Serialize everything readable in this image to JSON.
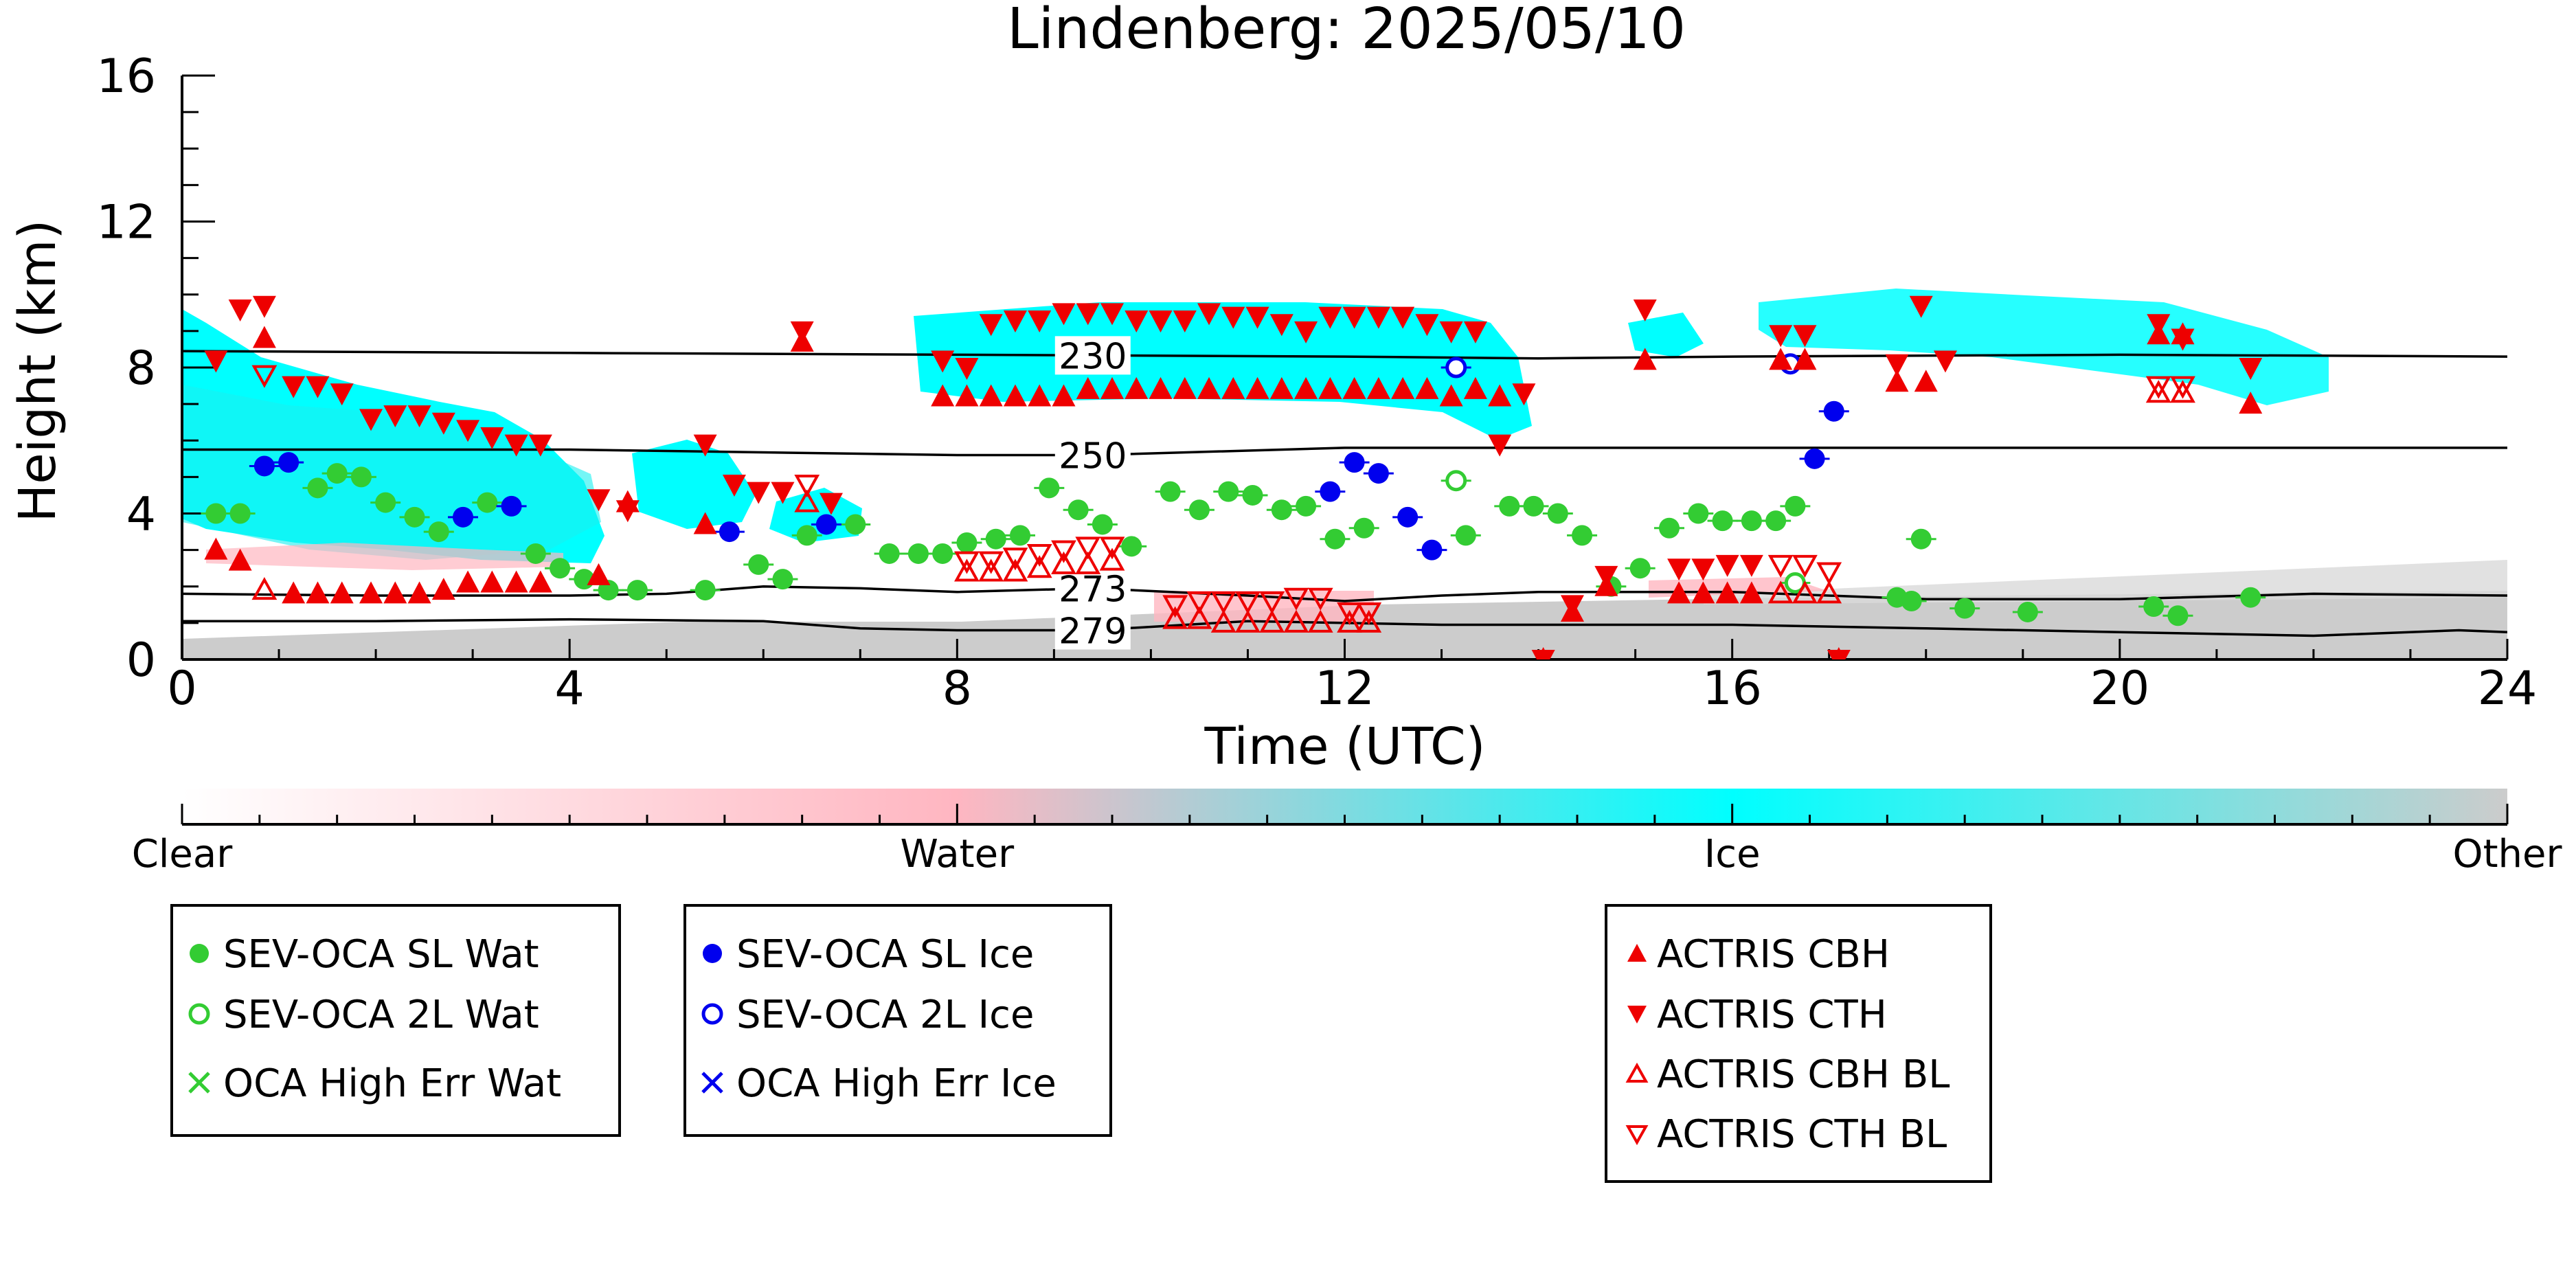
{
  "chart_data": {
    "type": "scatter",
    "title": "Lindenberg: 2025/05/10",
    "xlabel": "Time (UTC)",
    "ylabel": "Height (km)",
    "xlim": [
      0,
      24
    ],
    "ylim": [
      0,
      16
    ],
    "xticks": [
      0,
      4,
      8,
      12,
      16,
      20,
      24
    ],
    "yticks": [
      0,
      4,
      8,
      12,
      16
    ],
    "grid": false,
    "background": "cloud classification curtain (Clear/Water/Ice/Other)",
    "colorbar": {
      "labels": [
        "Clear",
        "Water",
        "Ice",
        "Other"
      ],
      "colors": [
        "#ffffff",
        "#ffb6c1",
        "#00ffff",
        "#cccccc"
      ]
    },
    "isotherms": [
      {
        "label": "230",
        "label_x": 9.4,
        "points": [
          [
            0,
            8.45
          ],
          [
            4,
            8.4
          ],
          [
            8,
            8.35
          ],
          [
            12,
            8.3
          ],
          [
            14,
            8.25
          ],
          [
            16,
            8.3
          ],
          [
            20,
            8.35
          ],
          [
            24,
            8.3
          ]
        ]
      },
      {
        "label": "250",
        "label_x": 9.4,
        "points": [
          [
            0,
            5.75
          ],
          [
            4,
            5.75
          ],
          [
            8,
            5.6
          ],
          [
            9.4,
            5.6
          ],
          [
            12,
            5.8
          ],
          [
            16,
            5.8
          ],
          [
            20,
            5.8
          ],
          [
            24,
            5.8
          ]
        ]
      },
      {
        "label": "273",
        "label_x": 9.4,
        "points": [
          [
            0,
            1.8
          ],
          [
            2,
            1.75
          ],
          [
            4,
            1.75
          ],
          [
            5,
            1.8
          ],
          [
            6,
            2.0
          ],
          [
            7,
            1.95
          ],
          [
            8,
            1.85
          ],
          [
            9.4,
            1.95
          ],
          [
            11,
            1.75
          ],
          [
            12,
            1.6
          ],
          [
            13,
            1.75
          ],
          [
            14,
            1.85
          ],
          [
            16,
            1.85
          ],
          [
            18,
            1.65
          ],
          [
            20,
            1.65
          ],
          [
            22,
            1.8
          ],
          [
            24,
            1.75
          ]
        ]
      },
      {
        "label": "279",
        "label_x": 9.4,
        "points": [
          [
            0,
            1.05
          ],
          [
            2,
            1.05
          ],
          [
            4,
            1.1
          ],
          [
            6,
            1.05
          ],
          [
            7,
            0.85
          ],
          [
            8,
            0.8
          ],
          [
            9.4,
            0.8
          ],
          [
            11,
            1.05
          ],
          [
            13,
            0.95
          ],
          [
            14,
            0.95
          ],
          [
            16,
            0.95
          ],
          [
            18,
            0.85
          ],
          [
            20,
            0.75
          ],
          [
            22,
            0.65
          ],
          [
            23.5,
            0.8
          ],
          [
            24,
            0.75
          ]
        ]
      }
    ],
    "series": [
      {
        "name": "SEV-OCA SL Wat",
        "marker": "filled-circle",
        "color": "#33cc33",
        "points": [
          [
            0.35,
            4.0
          ],
          [
            0.6,
            4.0
          ],
          [
            1.4,
            4.7
          ],
          [
            1.6,
            5.1
          ],
          [
            1.85,
            5.0
          ],
          [
            2.1,
            4.3
          ],
          [
            2.4,
            3.9
          ],
          [
            2.65,
            3.5
          ],
          [
            3.15,
            4.3
          ],
          [
            3.65,
            2.9
          ],
          [
            3.9,
            2.5
          ],
          [
            4.15,
            2.2
          ],
          [
            4.4,
            1.9
          ],
          [
            4.7,
            1.9
          ],
          [
            5.4,
            1.9
          ],
          [
            5.95,
            2.6
          ],
          [
            6.2,
            2.2
          ],
          [
            6.45,
            3.4
          ],
          [
            6.95,
            3.7
          ],
          [
            7.3,
            2.9
          ],
          [
            7.6,
            2.9
          ],
          [
            7.85,
            2.9
          ],
          [
            8.1,
            3.2
          ],
          [
            8.4,
            3.3
          ],
          [
            8.65,
            3.4
          ],
          [
            8.95,
            4.7
          ],
          [
            9.25,
            4.1
          ],
          [
            9.5,
            3.7
          ],
          [
            9.8,
            3.1
          ],
          [
            10.2,
            4.6
          ],
          [
            10.5,
            4.1
          ],
          [
            10.8,
            4.6
          ],
          [
            11.05,
            4.5
          ],
          [
            11.35,
            4.1
          ],
          [
            11.6,
            4.2
          ],
          [
            11.9,
            3.3
          ],
          [
            12.2,
            3.6
          ],
          [
            13.25,
            3.4
          ],
          [
            13.7,
            4.2
          ],
          [
            13.95,
            4.2
          ],
          [
            14.2,
            4.0
          ],
          [
            14.45,
            3.4
          ],
          [
            14.75,
            2.0
          ],
          [
            15.05,
            2.5
          ],
          [
            15.35,
            3.6
          ],
          [
            15.65,
            4.0
          ],
          [
            15.9,
            3.8
          ],
          [
            16.2,
            3.8
          ],
          [
            16.45,
            3.8
          ],
          [
            16.65,
            4.2
          ],
          [
            17.95,
            3.3
          ],
          [
            17.7,
            1.7
          ],
          [
            17.85,
            1.6
          ],
          [
            18.4,
            1.4
          ],
          [
            19.05,
            1.3
          ],
          [
            20.35,
            1.45
          ],
          [
            20.6,
            1.2
          ],
          [
            21.35,
            1.7
          ]
        ]
      },
      {
        "name": "SEV-OCA 2L Wat",
        "marker": "open-circle",
        "color": "#33cc33",
        "points": [
          [
            13.15,
            4.9
          ],
          [
            16.65,
            2.1
          ]
        ]
      },
      {
        "name": "OCA High Err Wat",
        "marker": "x",
        "color": "#33cc33",
        "points": []
      },
      {
        "name": "SEV-OCA SL Ice",
        "marker": "filled-circle",
        "color": "#0000ee",
        "points": [
          [
            0.85,
            5.3
          ],
          [
            1.1,
            5.4
          ],
          [
            2.9,
            3.9
          ],
          [
            3.4,
            4.2
          ],
          [
            5.65,
            3.5
          ],
          [
            6.65,
            3.7
          ],
          [
            11.85,
            4.6
          ],
          [
            12.1,
            5.4
          ],
          [
            12.35,
            5.1
          ],
          [
            12.65,
            3.9
          ],
          [
            12.9,
            3.0
          ],
          [
            16.85,
            5.5
          ],
          [
            17.05,
            6.8
          ]
        ]
      },
      {
        "name": "SEV-OCA 2L Ice",
        "marker": "open-circle",
        "color": "#0000ee",
        "points": [
          [
            13.15,
            8.0
          ],
          [
            16.6,
            8.1
          ]
        ]
      },
      {
        "name": "OCA High Err Ice",
        "marker": "x",
        "color": "#0000ee",
        "points": []
      },
      {
        "name": "ACTRIS CBH",
        "marker": "filled-triangle-up",
        "color": "#ee0000",
        "points": [
          [
            0.35,
            3.0
          ],
          [
            0.6,
            2.7
          ],
          [
            0.85,
            8.8
          ],
          [
            1.15,
            1.8
          ],
          [
            1.4,
            1.8
          ],
          [
            1.65,
            1.8
          ],
          [
            1.95,
            1.8
          ],
          [
            2.2,
            1.8
          ],
          [
            2.45,
            1.8
          ],
          [
            2.7,
            1.9
          ],
          [
            2.95,
            2.1
          ],
          [
            3.2,
            2.1
          ],
          [
            3.45,
            2.1
          ],
          [
            3.7,
            2.1
          ],
          [
            4.3,
            2.3
          ],
          [
            4.6,
            4.3
          ],
          [
            5.4,
            3.7
          ],
          [
            6.4,
            8.7
          ],
          [
            7.85,
            7.2
          ],
          [
            8.1,
            7.2
          ],
          [
            8.35,
            7.2
          ],
          [
            8.6,
            7.2
          ],
          [
            8.85,
            7.2
          ],
          [
            9.1,
            7.2
          ],
          [
            9.35,
            7.4
          ],
          [
            9.6,
            7.4
          ],
          [
            9.85,
            7.4
          ],
          [
            10.1,
            7.4
          ],
          [
            10.35,
            7.4
          ],
          [
            10.6,
            7.4
          ],
          [
            10.85,
            7.4
          ],
          [
            11.1,
            7.4
          ],
          [
            11.35,
            7.4
          ],
          [
            11.6,
            7.4
          ],
          [
            11.85,
            7.4
          ],
          [
            12.1,
            7.4
          ],
          [
            12.35,
            7.4
          ],
          [
            12.6,
            7.4
          ],
          [
            12.85,
            7.4
          ],
          [
            13.1,
            7.2
          ],
          [
            13.35,
            7.4
          ],
          [
            13.6,
            7.2
          ],
          [
            14.05,
            0.0
          ],
          [
            14.35,
            1.3
          ],
          [
            14.7,
            2.0
          ],
          [
            15.1,
            8.2
          ],
          [
            15.45,
            1.8
          ],
          [
            15.7,
            1.8
          ],
          [
            15.95,
            1.8
          ],
          [
            16.2,
            1.8
          ],
          [
            16.5,
            8.2
          ],
          [
            16.75,
            8.2
          ],
          [
            17.1,
            0.0
          ],
          [
            17.7,
            7.6
          ],
          [
            18.0,
            7.6
          ],
          [
            20.4,
            8.9
          ],
          [
            20.65,
            8.9
          ],
          [
            21.35,
            7.0
          ]
        ]
      },
      {
        "name": "ACTRIS CTH",
        "marker": "filled-triangle-down",
        "color": "#ee0000",
        "points": [
          [
            0.35,
            8.2
          ],
          [
            0.6,
            9.6
          ],
          [
            0.85,
            9.7
          ],
          [
            1.15,
            7.5
          ],
          [
            1.4,
            7.5
          ],
          [
            1.65,
            7.3
          ],
          [
            1.95,
            6.6
          ],
          [
            2.2,
            6.7
          ],
          [
            2.45,
            6.7
          ],
          [
            2.7,
            6.5
          ],
          [
            2.95,
            6.3
          ],
          [
            3.2,
            6.1
          ],
          [
            3.45,
            5.9
          ],
          [
            3.7,
            5.9
          ],
          [
            4.3,
            4.4
          ],
          [
            4.6,
            4.1
          ],
          [
            5.4,
            5.9
          ],
          [
            5.7,
            4.8
          ],
          [
            5.95,
            4.6
          ],
          [
            6.2,
            4.6
          ],
          [
            6.4,
            9.0
          ],
          [
            6.7,
            4.3
          ],
          [
            7.85,
            8.2
          ],
          [
            8.1,
            8.0
          ],
          [
            8.35,
            9.2
          ],
          [
            8.6,
            9.3
          ],
          [
            8.85,
            9.3
          ],
          [
            9.1,
            9.5
          ],
          [
            9.35,
            9.5
          ],
          [
            9.6,
            9.5
          ],
          [
            9.85,
            9.3
          ],
          [
            10.1,
            9.3
          ],
          [
            10.35,
            9.3
          ],
          [
            10.6,
            9.5
          ],
          [
            10.85,
            9.4
          ],
          [
            11.1,
            9.4
          ],
          [
            11.35,
            9.2
          ],
          [
            11.6,
            9.0
          ],
          [
            11.85,
            9.4
          ],
          [
            12.1,
            9.4
          ],
          [
            12.35,
            9.4
          ],
          [
            12.6,
            9.4
          ],
          [
            12.85,
            9.2
          ],
          [
            13.1,
            9.0
          ],
          [
            13.35,
            9.0
          ],
          [
            13.6,
            5.9
          ],
          [
            13.85,
            7.3
          ],
          [
            14.05,
            0.0
          ],
          [
            14.35,
            1.5
          ],
          [
            14.7,
            2.3
          ],
          [
            15.1,
            9.6
          ],
          [
            15.45,
            2.5
          ],
          [
            15.7,
            2.5
          ],
          [
            15.95,
            2.6
          ],
          [
            16.2,
            2.6
          ],
          [
            16.5,
            8.9
          ],
          [
            16.75,
            8.9
          ],
          [
            17.1,
            0.0
          ],
          [
            17.7,
            8.1
          ],
          [
            17.95,
            9.7
          ],
          [
            18.2,
            8.2
          ],
          [
            20.4,
            9.2
          ],
          [
            20.65,
            8.8
          ],
          [
            21.35,
            8.0
          ]
        ]
      },
      {
        "name": "ACTRIS CBH BL",
        "marker": "open-triangle-up",
        "color": "#ee0000",
        "points": [
          [
            0.85,
            1.9
          ],
          [
            6.45,
            4.3
          ],
          [
            8.1,
            2.4
          ],
          [
            8.35,
            2.4
          ],
          [
            8.6,
            2.4
          ],
          [
            8.85,
            2.5
          ],
          [
            9.1,
            2.6
          ],
          [
            9.35,
            2.6
          ],
          [
            9.6,
            2.7
          ],
          [
            10.25,
            1.1
          ],
          [
            10.5,
            1.1
          ],
          [
            10.75,
            1.0
          ],
          [
            11.0,
            1.0
          ],
          [
            11.25,
            1.0
          ],
          [
            11.5,
            1.0
          ],
          [
            11.75,
            1.0
          ],
          [
            12.05,
            1.0
          ],
          [
            12.25,
            1.0
          ],
          [
            16.5,
            1.8
          ],
          [
            16.75,
            1.8
          ],
          [
            17.0,
            1.8
          ],
          [
            20.4,
            7.3
          ],
          [
            20.65,
            7.3
          ]
        ]
      },
      {
        "name": "ACTRIS CTH BL",
        "marker": "open-triangle-down",
        "color": "#ee0000",
        "points": [
          [
            0.85,
            7.8
          ],
          [
            6.45,
            4.8
          ],
          [
            8.1,
            2.7
          ],
          [
            8.35,
            2.7
          ],
          [
            8.6,
            2.8
          ],
          [
            8.85,
            2.9
          ],
          [
            9.1,
            3.0
          ],
          [
            9.35,
            3.1
          ],
          [
            9.6,
            3.1
          ],
          [
            10.25,
            1.5
          ],
          [
            10.5,
            1.6
          ],
          [
            10.75,
            1.6
          ],
          [
            11.0,
            1.6
          ],
          [
            11.25,
            1.6
          ],
          [
            11.5,
            1.7
          ],
          [
            11.75,
            1.7
          ],
          [
            12.05,
            1.3
          ],
          [
            12.25,
            1.3
          ],
          [
            16.5,
            2.6
          ],
          [
            16.75,
            2.6
          ],
          [
            17.0,
            2.4
          ],
          [
            20.4,
            7.5
          ],
          [
            20.65,
            7.5
          ]
        ]
      }
    ]
  },
  "legend": {
    "box1": [
      "SEV-OCA SL Wat",
      "SEV-OCA 2L Wat",
      "OCA High Err Wat"
    ],
    "box2": [
      "SEV-OCA SL Ice",
      "SEV-OCA 2L Ice",
      "OCA High Err Ice"
    ],
    "box3": [
      "ACTRIS CBH",
      "ACTRIS CTH",
      "ACTRIS CBH BL",
      "ACTRIS CTH BL"
    ]
  }
}
